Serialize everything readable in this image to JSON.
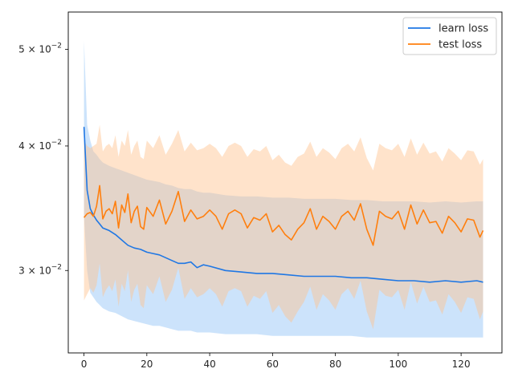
{
  "chart_data": {
    "type": "line",
    "title": "",
    "xlabel": "",
    "ylabel": "",
    "yscale": "log",
    "xlim": [
      -5,
      133
    ],
    "ylim": [
      0.0248,
      0.0545
    ],
    "x_ticks": [
      0,
      20,
      40,
      60,
      80,
      100,
      120
    ],
    "x_tick_labels": [
      "0",
      "20",
      "40",
      "60",
      "80",
      "100",
      "120"
    ],
    "y_ticks": [
      0.03,
      0.04,
      0.05
    ],
    "y_tick_labels": [
      {
        "mantissa": "3",
        "base": "10",
        "exp": "−2"
      },
      {
        "mantissa": "4",
        "base": "10",
        "exp": "−2"
      },
      {
        "mantissa": "5",
        "base": "10",
        "exp": "−2"
      }
    ],
    "legend_position": "top-right",
    "colors": {
      "learn": "#1f77e4",
      "learn_band": "#99c8f8",
      "test": "#ff7f0e",
      "test_band": "#ffc08c"
    },
    "series": [
      {
        "name": "learn loss",
        "key": "learn",
        "x": [
          0,
          1,
          2,
          3,
          4,
          5,
          6,
          8,
          10,
          12,
          14,
          16,
          18,
          20,
          22,
          24,
          26,
          28,
          30,
          32,
          34,
          36,
          38,
          40,
          45,
          50,
          55,
          60,
          65,
          70,
          75,
          80,
          85,
          90,
          95,
          100,
          105,
          110,
          115,
          120,
          125,
          127
        ],
        "values": [
          0.0418,
          0.0361,
          0.0346,
          0.0341,
          0.0337,
          0.0334,
          0.0331,
          0.0329,
          0.0326,
          0.0322,
          0.0318,
          0.0316,
          0.0315,
          0.0313,
          0.0312,
          0.0311,
          0.0309,
          0.0307,
          0.0305,
          0.0305,
          0.0306,
          0.0302,
          0.0304,
          0.0303,
          0.03,
          0.0299,
          0.0298,
          0.0298,
          0.0297,
          0.0296,
          0.0296,
          0.0296,
          0.0295,
          0.0295,
          0.0294,
          0.0293,
          0.0293,
          0.0292,
          0.0293,
          0.0292,
          0.0293,
          0.0292
        ],
        "upper": [
          0.051,
          0.042,
          0.0405,
          0.0395,
          0.0392,
          0.0388,
          0.0385,
          0.0382,
          0.038,
          0.0378,
          0.0376,
          0.0374,
          0.0372,
          0.037,
          0.0369,
          0.0368,
          0.0366,
          0.0365,
          0.0363,
          0.0362,
          0.0362,
          0.036,
          0.0359,
          0.0359,
          0.0357,
          0.0356,
          0.0356,
          0.0355,
          0.0355,
          0.0354,
          0.0354,
          0.0354,
          0.0353,
          0.0353,
          0.0352,
          0.0352,
          0.0352,
          0.0351,
          0.0352,
          0.0351,
          0.0352,
          0.0352
        ],
        "lower": [
          0.034,
          0.03,
          0.0285,
          0.0282,
          0.0279,
          0.0277,
          0.0275,
          0.0273,
          0.0272,
          0.027,
          0.0268,
          0.0267,
          0.0266,
          0.0265,
          0.0264,
          0.0264,
          0.0263,
          0.0262,
          0.0261,
          0.0261,
          0.0261,
          0.026,
          0.026,
          0.026,
          0.0259,
          0.0259,
          0.0259,
          0.0258,
          0.0258,
          0.0258,
          0.0258,
          0.0258,
          0.0258,
          0.0257,
          0.0257,
          0.0257,
          0.0257,
          0.0257,
          0.0257,
          0.0257,
          0.0257,
          0.0257
        ]
      },
      {
        "name": "test loss",
        "key": "test",
        "x": [
          0,
          1,
          2,
          3,
          4,
          5,
          6,
          7,
          8,
          9,
          10,
          11,
          12,
          13,
          14,
          15,
          16,
          17,
          18,
          19,
          20,
          22,
          24,
          26,
          28,
          30,
          32,
          34,
          36,
          38,
          40,
          42,
          44,
          46,
          48,
          50,
          52,
          54,
          56,
          58,
          60,
          62,
          64,
          66,
          68,
          70,
          72,
          74,
          76,
          78,
          80,
          82,
          84,
          86,
          88,
          90,
          92,
          94,
          96,
          98,
          100,
          102,
          104,
          106,
          108,
          110,
          112,
          114,
          116,
          118,
          120,
          122,
          124,
          126,
          127
        ],
        "values": [
          0.0339,
          0.0342,
          0.0343,
          0.034,
          0.0348,
          0.0365,
          0.0338,
          0.0344,
          0.0346,
          0.0342,
          0.0352,
          0.0331,
          0.0349,
          0.0343,
          0.0358,
          0.0335,
          0.0344,
          0.0348,
          0.0332,
          0.033,
          0.0347,
          0.034,
          0.0353,
          0.0334,
          0.0344,
          0.036,
          0.0336,
          0.0345,
          0.0338,
          0.034,
          0.0345,
          0.034,
          0.033,
          0.0342,
          0.0345,
          0.0342,
          0.0331,
          0.0339,
          0.0337,
          0.0342,
          0.0328,
          0.0333,
          0.0326,
          0.0322,
          0.033,
          0.0335,
          0.0346,
          0.033,
          0.034,
          0.0336,
          0.033,
          0.034,
          0.0344,
          0.0337,
          0.035,
          0.033,
          0.0318,
          0.0344,
          0.034,
          0.0338,
          0.0344,
          0.033,
          0.0349,
          0.0334,
          0.0345,
          0.0335,
          0.0336,
          0.0327,
          0.034,
          0.0335,
          0.0328,
          0.0338,
          0.0337,
          0.0324,
          0.0329
        ],
        "upper": [
          0.0405,
          0.04,
          0.0398,
          0.04,
          0.0402,
          0.042,
          0.0395,
          0.04,
          0.0402,
          0.0398,
          0.041,
          0.039,
          0.0405,
          0.04,
          0.0415,
          0.0392,
          0.04,
          0.0405,
          0.039,
          0.0388,
          0.0405,
          0.0398,
          0.041,
          0.0392,
          0.0402,
          0.0415,
          0.0395,
          0.0403,
          0.0396,
          0.0398,
          0.0402,
          0.0398,
          0.039,
          0.04,
          0.0403,
          0.04,
          0.039,
          0.0397,
          0.0395,
          0.04,
          0.0387,
          0.0392,
          0.0385,
          0.0382,
          0.039,
          0.0393,
          0.0404,
          0.039,
          0.0398,
          0.0394,
          0.0388,
          0.0398,
          0.0402,
          0.0395,
          0.0408,
          0.0389,
          0.0378,
          0.0402,
          0.0398,
          0.0396,
          0.0402,
          0.039,
          0.0407,
          0.0392,
          0.0403,
          0.0393,
          0.0395,
          0.0386,
          0.0398,
          0.0393,
          0.0387,
          0.0396,
          0.0395,
          0.0383,
          0.0388
        ],
        "lower": [
          0.028,
          0.0284,
          0.0288,
          0.0285,
          0.029,
          0.0305,
          0.0282,
          0.0287,
          0.029,
          0.0286,
          0.0294,
          0.0276,
          0.0291,
          0.0286,
          0.03,
          0.0279,
          0.0287,
          0.0291,
          0.0277,
          0.0275,
          0.029,
          0.0284,
          0.0296,
          0.0279,
          0.0287,
          0.0302,
          0.0281,
          0.0288,
          0.0282,
          0.0284,
          0.0288,
          0.0284,
          0.0276,
          0.0286,
          0.0288,
          0.0286,
          0.0276,
          0.0283,
          0.0281,
          0.0286,
          0.0272,
          0.0277,
          0.027,
          0.0266,
          0.0273,
          0.0279,
          0.0289,
          0.0274,
          0.0284,
          0.028,
          0.0274,
          0.0284,
          0.0288,
          0.0281,
          0.0293,
          0.0273,
          0.0262,
          0.0287,
          0.0283,
          0.0282,
          0.0287,
          0.0274,
          0.0292,
          0.0278,
          0.0289,
          0.0279,
          0.028,
          0.0271,
          0.0284,
          0.0279,
          0.0272,
          0.0282,
          0.0281,
          0.0268,
          0.0273
        ]
      }
    ]
  }
}
